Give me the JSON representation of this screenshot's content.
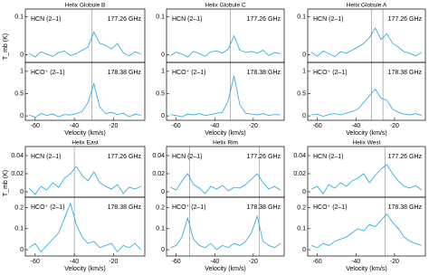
{
  "chart_data": [
    {
      "type": "line",
      "title": "Helix Globule B",
      "label": "HCN (2–1)",
      "freq": "177.26 GHz",
      "ylabel": "T_mb (K)",
      "x": [
        -63,
        -60,
        -57,
        -54,
        -51,
        -48,
        -45,
        -42,
        -39,
        -36,
        -33,
        -30,
        -27,
        -24,
        -21,
        -18,
        -15,
        -12,
        -9,
        -6
      ],
      "values": [
        0.004,
        -0.006,
        0.008,
        0.002,
        -0.004,
        0.006,
        0.01,
        -0.002,
        0.003,
        0.012,
        0.02,
        0.06,
        0.03,
        0.025,
        0.015,
        0.03,
        0.005,
        -0.003,
        0.008,
        0.002
      ],
      "color": "#1ca7e0",
      "xlim": [
        -65,
        -4
      ],
      "ylim": [
        -0.02,
        0.12
      ],
      "yticks": [
        0,
        0.1
      ],
      "vlines": [
        -31
      ]
    },
    {
      "type": "line",
      "label": "HCO⁺ (2–1)",
      "freq": "178.38 GHz",
      "xlabel": "Velocity (km/s)",
      "x": [
        -63,
        -60,
        -57,
        -54,
        -51,
        -48,
        -45,
        -42,
        -39,
        -36,
        -33,
        -30,
        -27,
        -24,
        -21,
        -18,
        -15,
        -12,
        -9,
        -6
      ],
      "values": [
        0.02,
        -0.03,
        0.05,
        0.01,
        0.04,
        -0.02,
        0.03,
        0.02,
        0.05,
        0.1,
        0.3,
        0.72,
        0.2,
        0.05,
        0.08,
        0.03,
        0.06,
        -0.02,
        0.04,
        0.01
      ],
      "color": "#1ca7e0",
      "xlim": [
        -65,
        -4
      ],
      "xticks": [
        -60,
        -40,
        -20
      ],
      "ylim": [
        -0.1,
        1.2
      ],
      "yticks": [
        0,
        0.5,
        1
      ],
      "vlines": [
        -31
      ]
    },
    {
      "type": "line",
      "title": "Helix Globule C",
      "label": "HCN (2–1)",
      "freq": "177.26 GHz",
      "x": [
        -63,
        -60,
        -57,
        -54,
        -51,
        -48,
        -45,
        -42,
        -39,
        -36,
        -33,
        -30,
        -27,
        -24,
        -21,
        -18,
        -15,
        -12,
        -9,
        -6
      ],
      "values": [
        -0.003,
        0.007,
        0.002,
        -0.006,
        0.009,
        0.003,
        -0.004,
        0.008,
        0.01,
        0.005,
        0.015,
        0.05,
        0.012,
        0.006,
        0.009,
        0.004,
        0.012,
        -0.002,
        0.006,
        0.003
      ],
      "color": "#1ca7e0",
      "xlim": [
        -65,
        -4
      ],
      "ylim": [
        -0.02,
        0.12
      ],
      "yticks": [
        0,
        0.1
      ],
      "vlines": [
        -32
      ]
    },
    {
      "type": "line",
      "label": "HCO⁺ (2–1)",
      "freq": "178.38 GHz",
      "xlabel": "Velocity (km/s)",
      "x": [
        -63,
        -60,
        -57,
        -54,
        -51,
        -48,
        -45,
        -42,
        -39,
        -36,
        -33,
        -30,
        -27,
        -24,
        -21,
        -18,
        -15,
        -12,
        -9,
        -6
      ],
      "values": [
        0.03,
        0.01,
        -0.02,
        0.04,
        0.02,
        0.05,
        0.01,
        0.03,
        0.06,
        0.08,
        0.35,
        0.9,
        0.25,
        0.06,
        0.04,
        0.02,
        0.05,
        0.01,
        0.03,
        0.02
      ],
      "color": "#1ca7e0",
      "xlim": [
        -65,
        -4
      ],
      "xticks": [
        -60,
        -40,
        -20
      ],
      "ylim": [
        -0.1,
        1.2
      ],
      "yticks": [
        0,
        0.5,
        1
      ],
      "vlines": [
        -32
      ]
    },
    {
      "type": "line",
      "title": "Helix Globule A",
      "label": "HCN (2–1)",
      "freq": "177.26 GHz",
      "x": [
        -63,
        -60,
        -57,
        -54,
        -51,
        -48,
        -45,
        -42,
        -39,
        -36,
        -33,
        -30,
        -27,
        -24,
        -21,
        -18,
        -15,
        -12,
        -9,
        -6
      ],
      "values": [
        0.006,
        -0.004,
        0.01,
        0.003,
        -0.005,
        0.008,
        0.004,
        0.012,
        0.02,
        0.03,
        0.045,
        0.07,
        0.04,
        0.055,
        0.03,
        0.02,
        0.008,
        0.004,
        -0.003,
        0.006
      ],
      "color": "#1ca7e0",
      "xlim": [
        -65,
        -4
      ],
      "ylim": [
        -0.02,
        0.12
      ],
      "yticks": [
        0,
        0.1
      ],
      "vlines": [
        -32,
        -26
      ]
    },
    {
      "type": "line",
      "label": "HCO⁺ (2–1)",
      "freq": "178.38 GHz",
      "xlabel": "Velocity (km/s)",
      "x": [
        -63,
        -60,
        -57,
        -54,
        -51,
        -48,
        -45,
        -42,
        -39,
        -36,
        -33,
        -30,
        -27,
        -24,
        -21,
        -18,
        -15,
        -12,
        -9,
        -6
      ],
      "values": [
        0.02,
        0.04,
        -0.01,
        0.03,
        0.05,
        0.02,
        0.06,
        0.1,
        0.15,
        0.3,
        0.45,
        0.6,
        0.4,
        0.35,
        0.15,
        0.08,
        0.04,
        0.02,
        0.05,
        0.01
      ],
      "color": "#1ca7e0",
      "xlim": [
        -65,
        -4
      ],
      "xticks": [
        -60,
        -40,
        -20
      ],
      "ylim": [
        -0.1,
        1.2
      ],
      "yticks": [
        0,
        0.5,
        1
      ],
      "vlines": [
        -32,
        -26
      ]
    },
    {
      "type": "line",
      "title": "Helix East",
      "label": "HCN (2–1)",
      "freq": "177.26 GHz",
      "ylabel": "T_mb (K)",
      "x": [
        -63,
        -60,
        -57,
        -54,
        -51,
        -48,
        -45,
        -42,
        -39,
        -36,
        -33,
        -30,
        -27,
        -24,
        -21,
        -18,
        -15,
        -12,
        -9,
        -6
      ],
      "values": [
        0.004,
        -0.003,
        0.006,
        0.002,
        0.01,
        0.005,
        0.015,
        0.02,
        0.028,
        0.018,
        0.012,
        0.022,
        0.01,
        0.006,
        0.003,
        0.008,
        -0.002,
        0.005,
        0.003,
        0.006
      ],
      "color": "#1ca7e0",
      "xlim": [
        -65,
        -4
      ],
      "ylim": [
        -0.006,
        0.05
      ],
      "yticks": [
        0,
        0.02,
        0.04
      ],
      "vlines": [
        -40
      ]
    },
    {
      "type": "line",
      "label": "HCO⁺ (2–1)",
      "freq": "178.38 GHz",
      "xlabel": "Velocity (km/s)",
      "x": [
        -63,
        -60,
        -57,
        -54,
        -51,
        -48,
        -45,
        -42,
        -39,
        -36,
        -33,
        -30,
        -27,
        -24,
        -21,
        -18,
        -15,
        -12,
        -9,
        -6
      ],
      "values": [
        0.01,
        0.03,
        -0.01,
        0.02,
        0.05,
        0.08,
        0.15,
        0.22,
        0.12,
        0.06,
        0.03,
        0.04,
        0.01,
        0.02,
        0.03,
        -0.01,
        0.02,
        0.01,
        0.03,
        0.0
      ],
      "color": "#1ca7e0",
      "xlim": [
        -65,
        -4
      ],
      "xticks": [
        -60,
        -40,
        -20
      ],
      "ylim": [
        -0.03,
        0.25
      ],
      "yticks": [
        0,
        0.1,
        0.2
      ],
      "vlines": [
        -40
      ]
    },
    {
      "type": "line",
      "title": "Helix Rim",
      "label": "HCN (2–1)",
      "freq": "177.26 GHz",
      "x": [
        -63,
        -60,
        -57,
        -54,
        -51,
        -48,
        -45,
        -42,
        -39,
        -36,
        -33,
        -30,
        -27,
        -24,
        -21,
        -18,
        -15,
        -12,
        -9,
        -6
      ],
      "values": [
        0.005,
        0.002,
        0.012,
        0.02,
        0.008,
        0.004,
        -0.002,
        0.006,
        0.003,
        0.007,
        0.001,
        0.005,
        0.004,
        0.008,
        0.014,
        0.02,
        0.01,
        0.003,
        0.006,
        0.002
      ],
      "color": "#1ca7e0",
      "xlim": [
        -65,
        -4
      ],
      "ylim": [
        -0.006,
        0.05
      ],
      "yticks": [
        0,
        0.02,
        0.04
      ],
      "vlines": [
        -53,
        -17
      ]
    },
    {
      "type": "line",
      "label": "HCO⁺ (2–1)",
      "freq": "178.38 GHz",
      "xlabel": "Velocity (km/s)",
      "x": [
        -63,
        -60,
        -57,
        -54,
        -51,
        -48,
        -45,
        -42,
        -39,
        -36,
        -33,
        -30,
        -27,
        -24,
        -21,
        -18,
        -15,
        -12,
        -9,
        -6
      ],
      "values": [
        0.01,
        0.02,
        0.06,
        0.15,
        0.05,
        0.02,
        0.01,
        0.03,
        0.0,
        0.02,
        0.01,
        0.03,
        0.02,
        0.04,
        0.08,
        0.16,
        0.04,
        0.02,
        0.01,
        0.03
      ],
      "color": "#1ca7e0",
      "xlim": [
        -65,
        -4
      ],
      "xticks": [
        -60,
        -40,
        -20
      ],
      "ylim": [
        -0.03,
        0.25
      ],
      "yticks": [
        0,
        0.1,
        0.2
      ],
      "vlines": [
        -53,
        -17
      ]
    },
    {
      "type": "line",
      "title": "Helix West",
      "label": "HCN (2–1)",
      "freq": "177.26 GHz",
      "x": [
        -63,
        -60,
        -57,
        -54,
        -51,
        -48,
        -45,
        -42,
        -39,
        -36,
        -33,
        -30,
        -27,
        -24,
        -21,
        -18,
        -15,
        -12,
        -9,
        -6
      ],
      "values": [
        0.003,
        0.006,
        -0.002,
        0.008,
        0.004,
        0.01,
        0.006,
        0.012,
        0.015,
        0.02,
        0.01,
        0.018,
        0.025,
        0.03,
        0.02,
        0.012,
        0.006,
        0.004,
        0.007,
        0.002
      ],
      "color": "#1ca7e0",
      "xlim": [
        -65,
        -4
      ],
      "ylim": [
        -0.006,
        0.05
      ],
      "yticks": [
        0,
        0.02,
        0.04
      ],
      "vlines": [
        -25
      ]
    },
    {
      "type": "line",
      "label": "HCO⁺ (2–1)",
      "freq": "178.38 GHz",
      "xlabel": "Velocity (km/s)",
      "x": [
        -63,
        -60,
        -57,
        -54,
        -51,
        -48,
        -45,
        -42,
        -39,
        -36,
        -33,
        -30,
        -27,
        -24,
        -21,
        -18,
        -15,
        -12,
        -9,
        -6
      ],
      "values": [
        0.02,
        0.01,
        0.03,
        0.02,
        0.04,
        0.05,
        0.06,
        0.08,
        0.1,
        0.09,
        0.12,
        0.11,
        0.14,
        0.17,
        0.13,
        0.1,
        0.06,
        0.04,
        0.03,
        0.02
      ],
      "color": "#1ca7e0",
      "xlim": [
        -65,
        -4
      ],
      "xticks": [
        -60,
        -40,
        -20
      ],
      "ylim": [
        -0.03,
        0.25
      ],
      "yticks": [
        0,
        0.1,
        0.2
      ],
      "vlines": [
        -25
      ]
    }
  ]
}
